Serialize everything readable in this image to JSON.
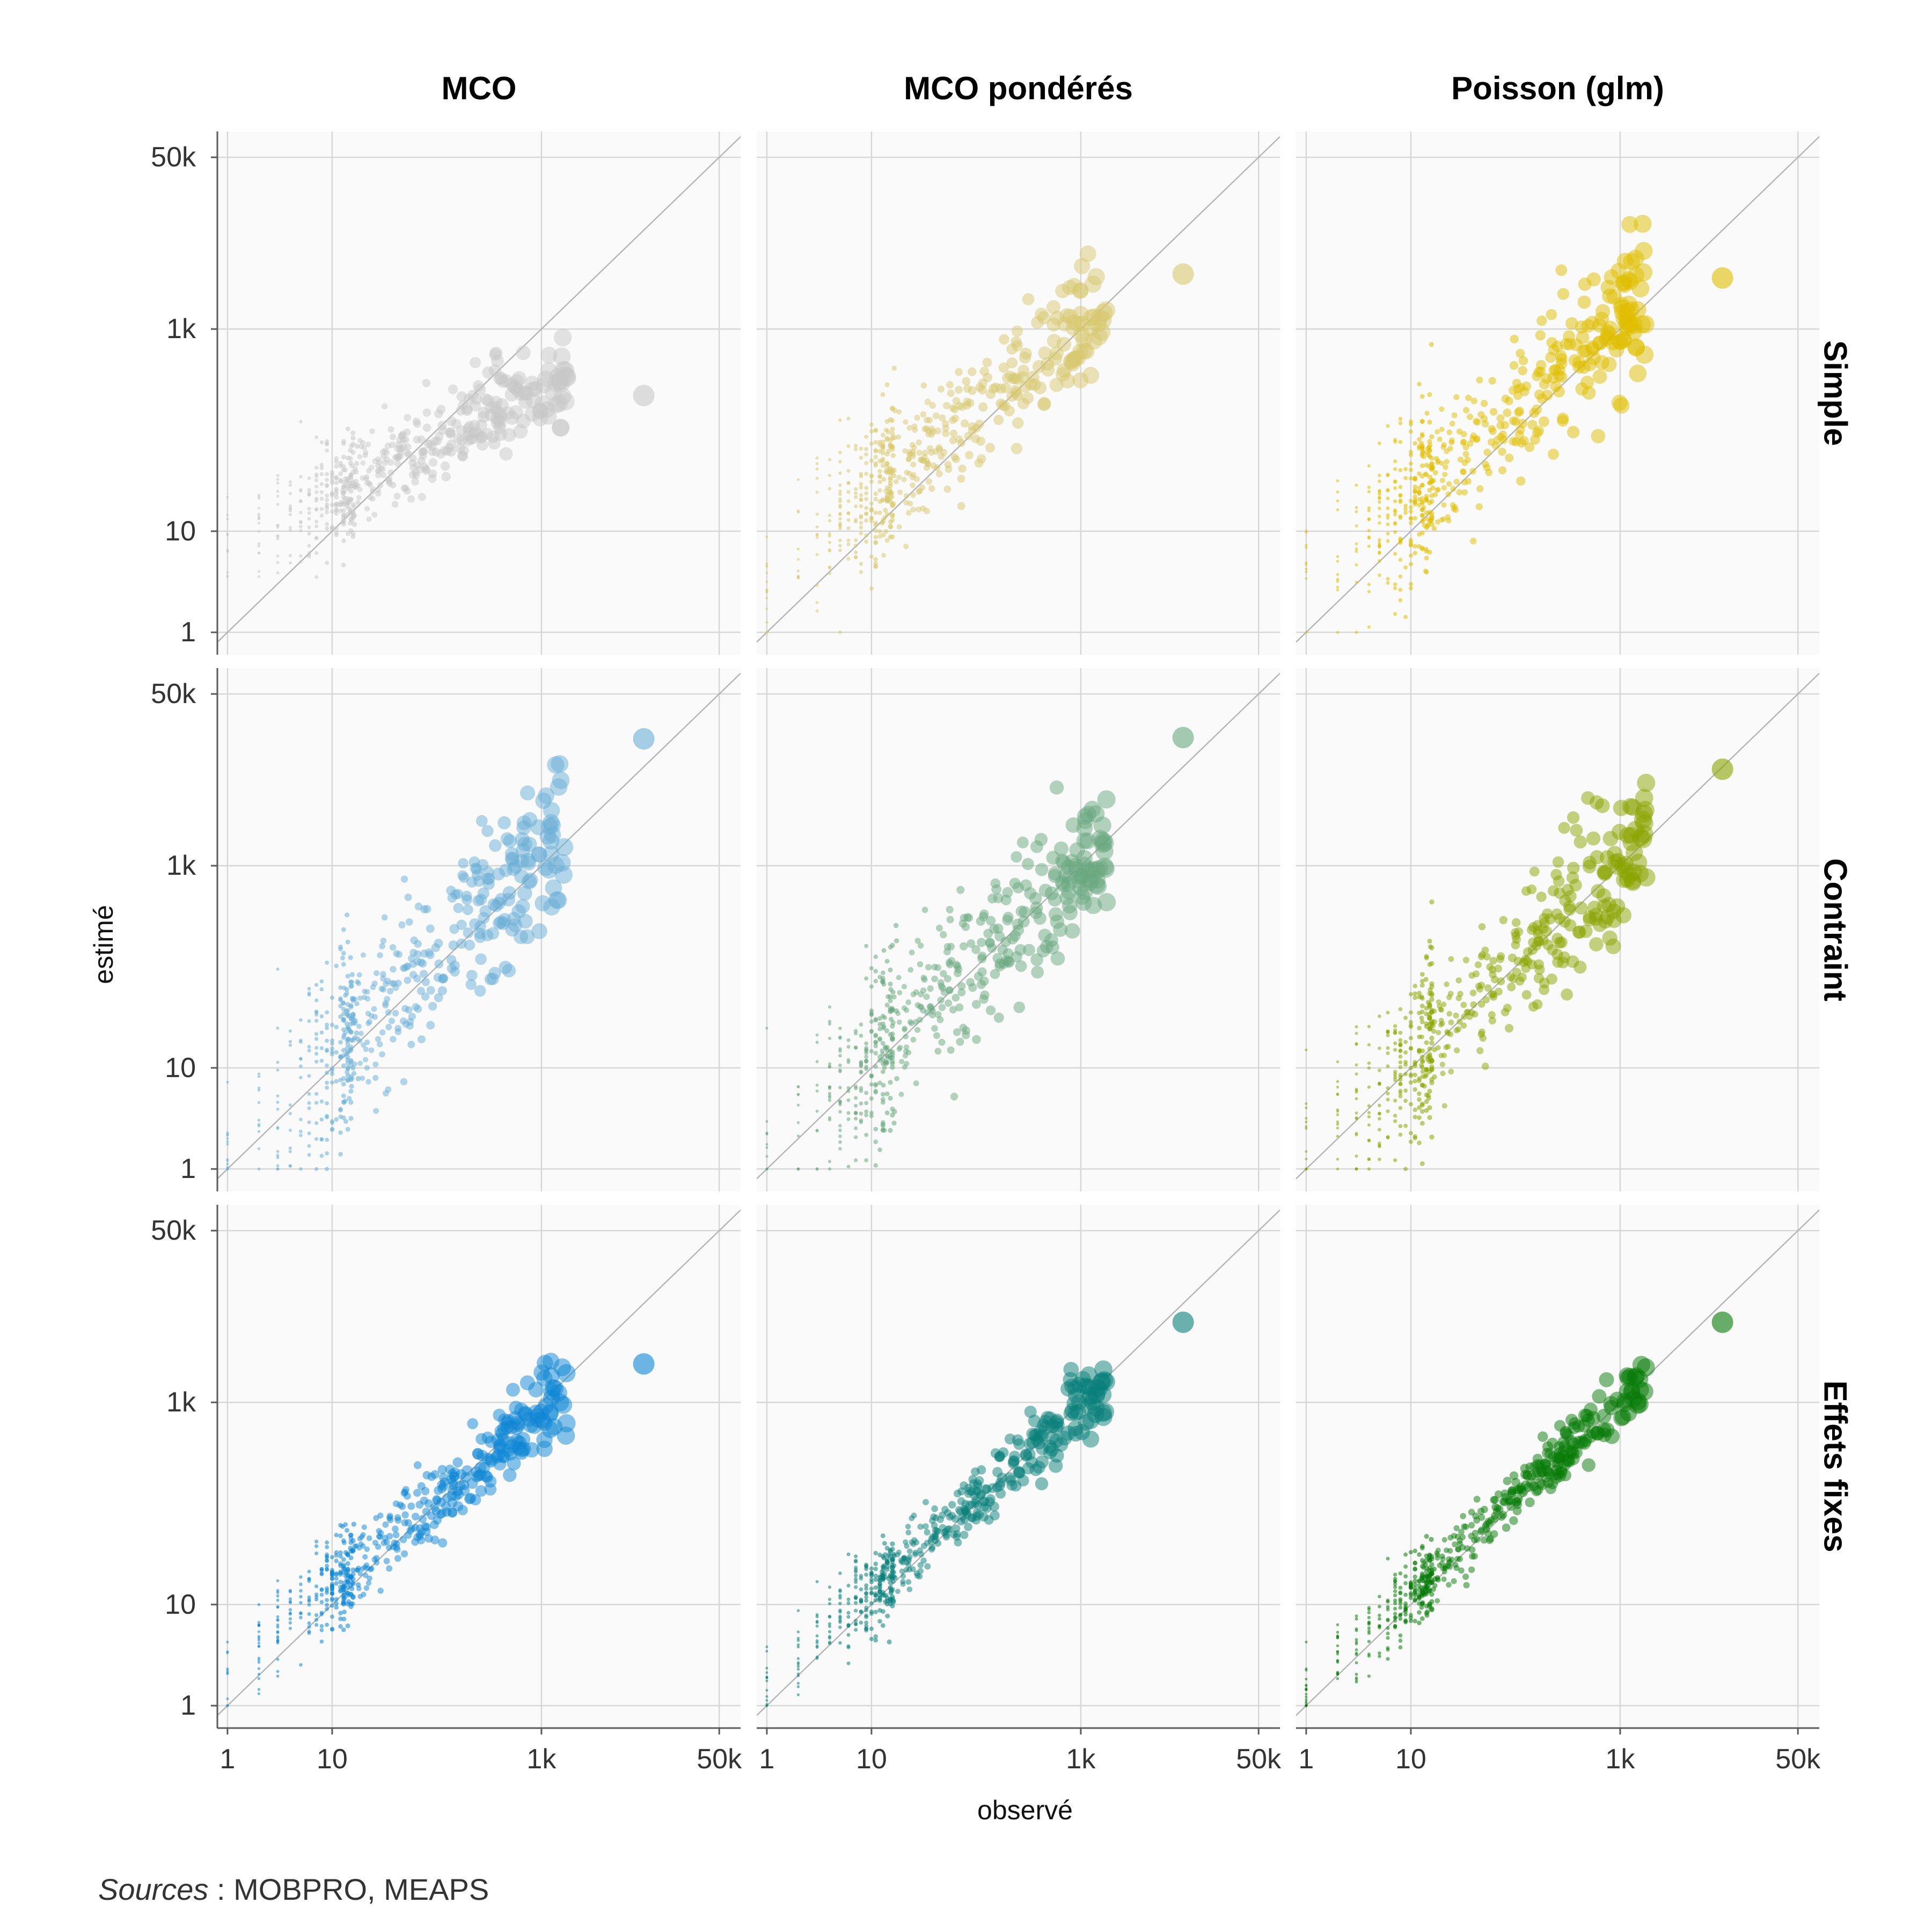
{
  "chart_data": {
    "type": "scatter",
    "facets": "3x3 grid (rows: model specification, columns: estimator)",
    "columns": [
      "MCO",
      "MCO pondérés",
      "Poisson (glm)"
    ],
    "rows": [
      "Simple",
      "Contraint",
      "Effets fixes"
    ],
    "xlabel": "observé",
    "ylabel": "estimé",
    "scale": "log10",
    "xlim": [
      0.8,
      80000
    ],
    "ylim": [
      0.6,
      90000
    ],
    "x_ticks": [
      1,
      10,
      1000,
      50000
    ],
    "x_tick_labels": [
      "1",
      "10",
      "1k",
      "50k"
    ],
    "y_ticks": [
      1,
      10,
      1000,
      50000
    ],
    "y_tick_labels": [
      "1",
      "10",
      "1k",
      "50k"
    ],
    "reference_line": "y = x",
    "colors": {
      "MCO|Simple": "#c8c8c8",
      "MCO pondérés|Simple": "#d8c870",
      "Poisson (glm)|Simple": "#e0be00",
      "MCO|Contraint": "#6aaed6",
      "MCO pondérés|Contraint": "#6aa880",
      "Poisson (glm)|Contraint": "#8aa400",
      "MCO|Effets fixes": "#0e86d4",
      "MCO pondérés|Effets fixes": "#0a7f7a",
      "Poisson (glm)|Effets fixes": "#057a05"
    },
    "panels": [
      {
        "col": "MCO",
        "row": "Simple",
        "approx_slope": 0.52,
        "approx_intercept": 0.85,
        "spread": 0.32,
        "largest_point": {
          "observé": 9500,
          "estimé": 220
        }
      },
      {
        "col": "MCO pondérés",
        "row": "Simple",
        "approx_slope": 0.82,
        "approx_intercept": 0.55,
        "spread": 0.42,
        "largest_point": {
          "observé": 9500,
          "estimé": 3500
        }
      },
      {
        "col": "Poisson (glm)",
        "row": "Simple",
        "approx_slope": 0.88,
        "approx_intercept": 0.45,
        "spread": 0.45,
        "largest_point": {
          "observé": 9500,
          "estimé": 3200
        }
      },
      {
        "col": "MCO",
        "row": "Contraint",
        "approx_slope": 1.0,
        "approx_intercept": 0.1,
        "spread": 0.6,
        "largest_point": {
          "observé": 9500,
          "estimé": 18000
        }
      },
      {
        "col": "MCO pondérés",
        "row": "Contraint",
        "approx_slope": 0.95,
        "approx_intercept": 0.15,
        "spread": 0.5,
        "largest_point": {
          "observé": 9500,
          "estimé": 18500
        }
      },
      {
        "col": "Poisson (glm)",
        "row": "Contraint",
        "approx_slope": 0.95,
        "approx_intercept": 0.15,
        "spread": 0.5,
        "largest_point": {
          "observé": 9500,
          "estimé": 9000
        }
      },
      {
        "col": "MCO",
        "row": "Effets fixes",
        "approx_slope": 0.85,
        "approx_intercept": 0.35,
        "spread": 0.25,
        "largest_point": {
          "observé": 9500,
          "estimé": 2400
        }
      },
      {
        "col": "MCO pondérés",
        "row": "Effets fixes",
        "approx_slope": 0.9,
        "approx_intercept": 0.25,
        "spread": 0.22,
        "largest_point": {
          "observé": 9500,
          "estimé": 6200
        }
      },
      {
        "col": "Poisson (glm)",
        "row": "Effets fixes",
        "approx_slope": 0.95,
        "approx_intercept": 0.15,
        "spread": 0.2,
        "largest_point": {
          "observé": 9500,
          "estimé": 6200
        }
      }
    ]
  },
  "caption": {
    "source_label": "Sources",
    "source_text": " : MOBPRO, MEAPS"
  }
}
